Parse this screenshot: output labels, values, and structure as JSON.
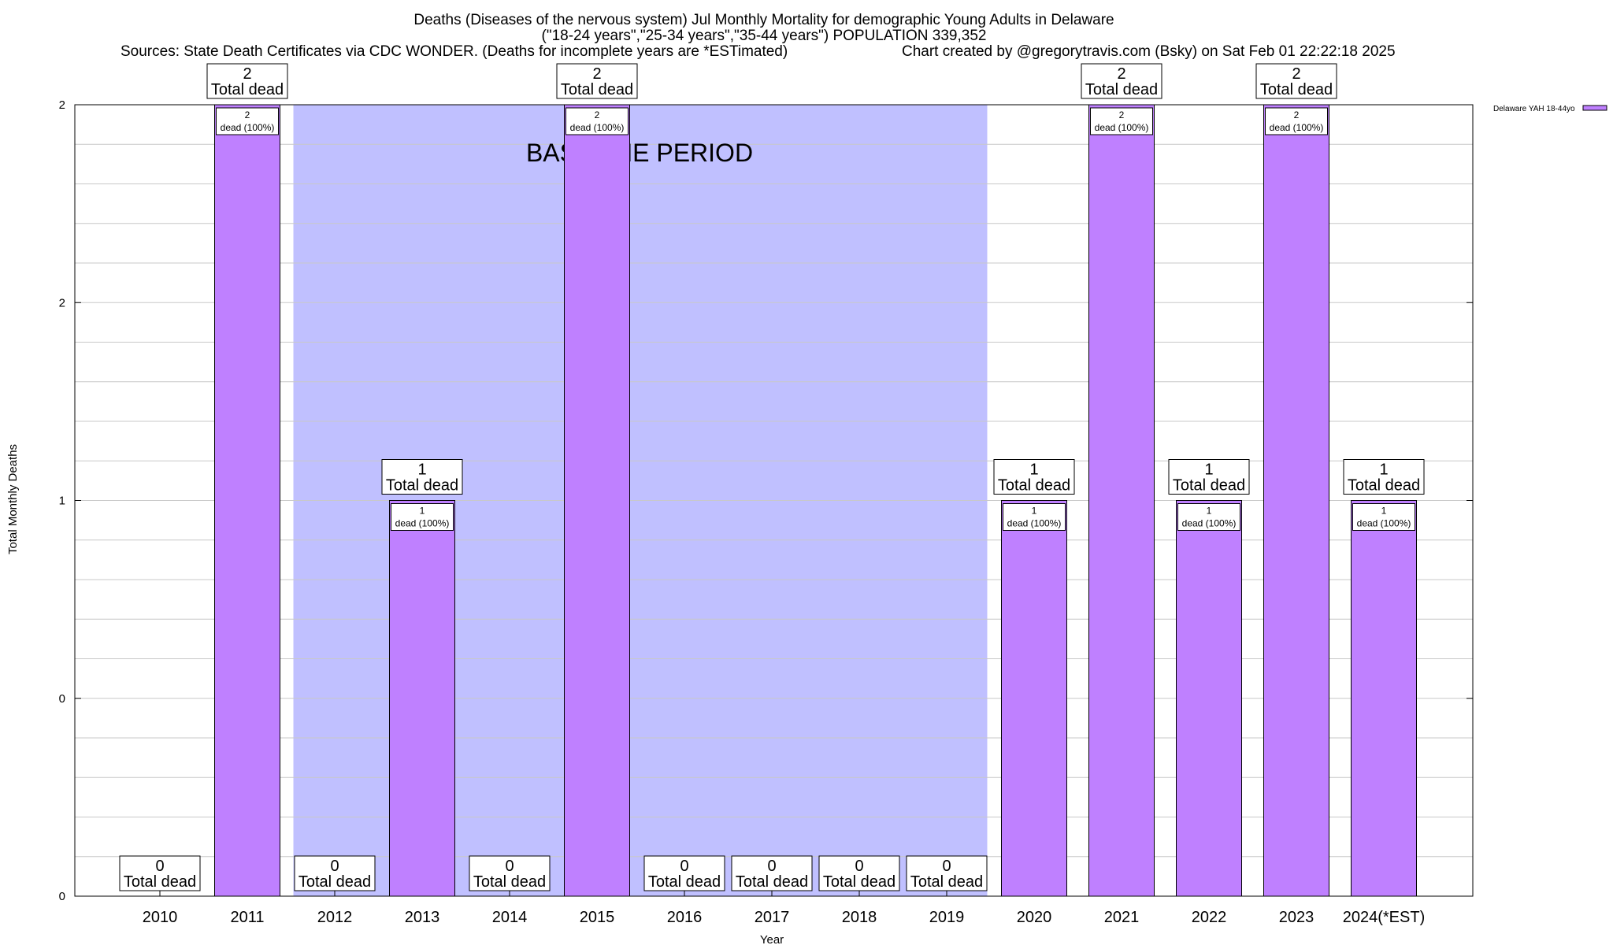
{
  "chart_data": {
    "type": "bar",
    "title_lines": [
      "Deaths (Diseases of the nervous system) Jul Monthly Mortality for demographic Young Adults in Delaware",
      "(\"18-24 years\",\"25-34 years\",\"35-44 years\") POPULATION 339,352"
    ],
    "sources": "Sources: State Death Certificates via CDC WONDER. (Deaths for incomplete years are *ESTimated)",
    "credit": "Chart created by @gregorytravis.com (Bsky) on Sat Feb 01 22:22:18 2025",
    "xlabel": "Year",
    "ylabel": "Total Monthly Deaths",
    "categories": [
      "2010",
      "2011",
      "2012",
      "2013",
      "2014",
      "2015",
      "2016",
      "2017",
      "2018",
      "2019",
      "2020",
      "2021",
      "2022",
      "2023",
      "2024(*EST)"
    ],
    "values": [
      0,
      2,
      0,
      1,
      0,
      2,
      0,
      0,
      0,
      0,
      1,
      2,
      1,
      2,
      1
    ],
    "ylim": [
      0,
      2
    ],
    "y_tick_labels": [
      "0",
      "0",
      "1",
      "2",
      "2"
    ],
    "total_label_suffix": "Total dead",
    "inner_label_suffix": "dead (100%)",
    "baseline": {
      "label": "BASELINE PERIOD",
      "start": "2012",
      "end": "2019"
    },
    "legend": {
      "label": "Delaware YAH 18-44yo",
      "position": "top-right"
    },
    "colors": {
      "bar": "#bf80ff",
      "baseline": "#c0c0ff",
      "grid": "#c8c8c8"
    }
  }
}
